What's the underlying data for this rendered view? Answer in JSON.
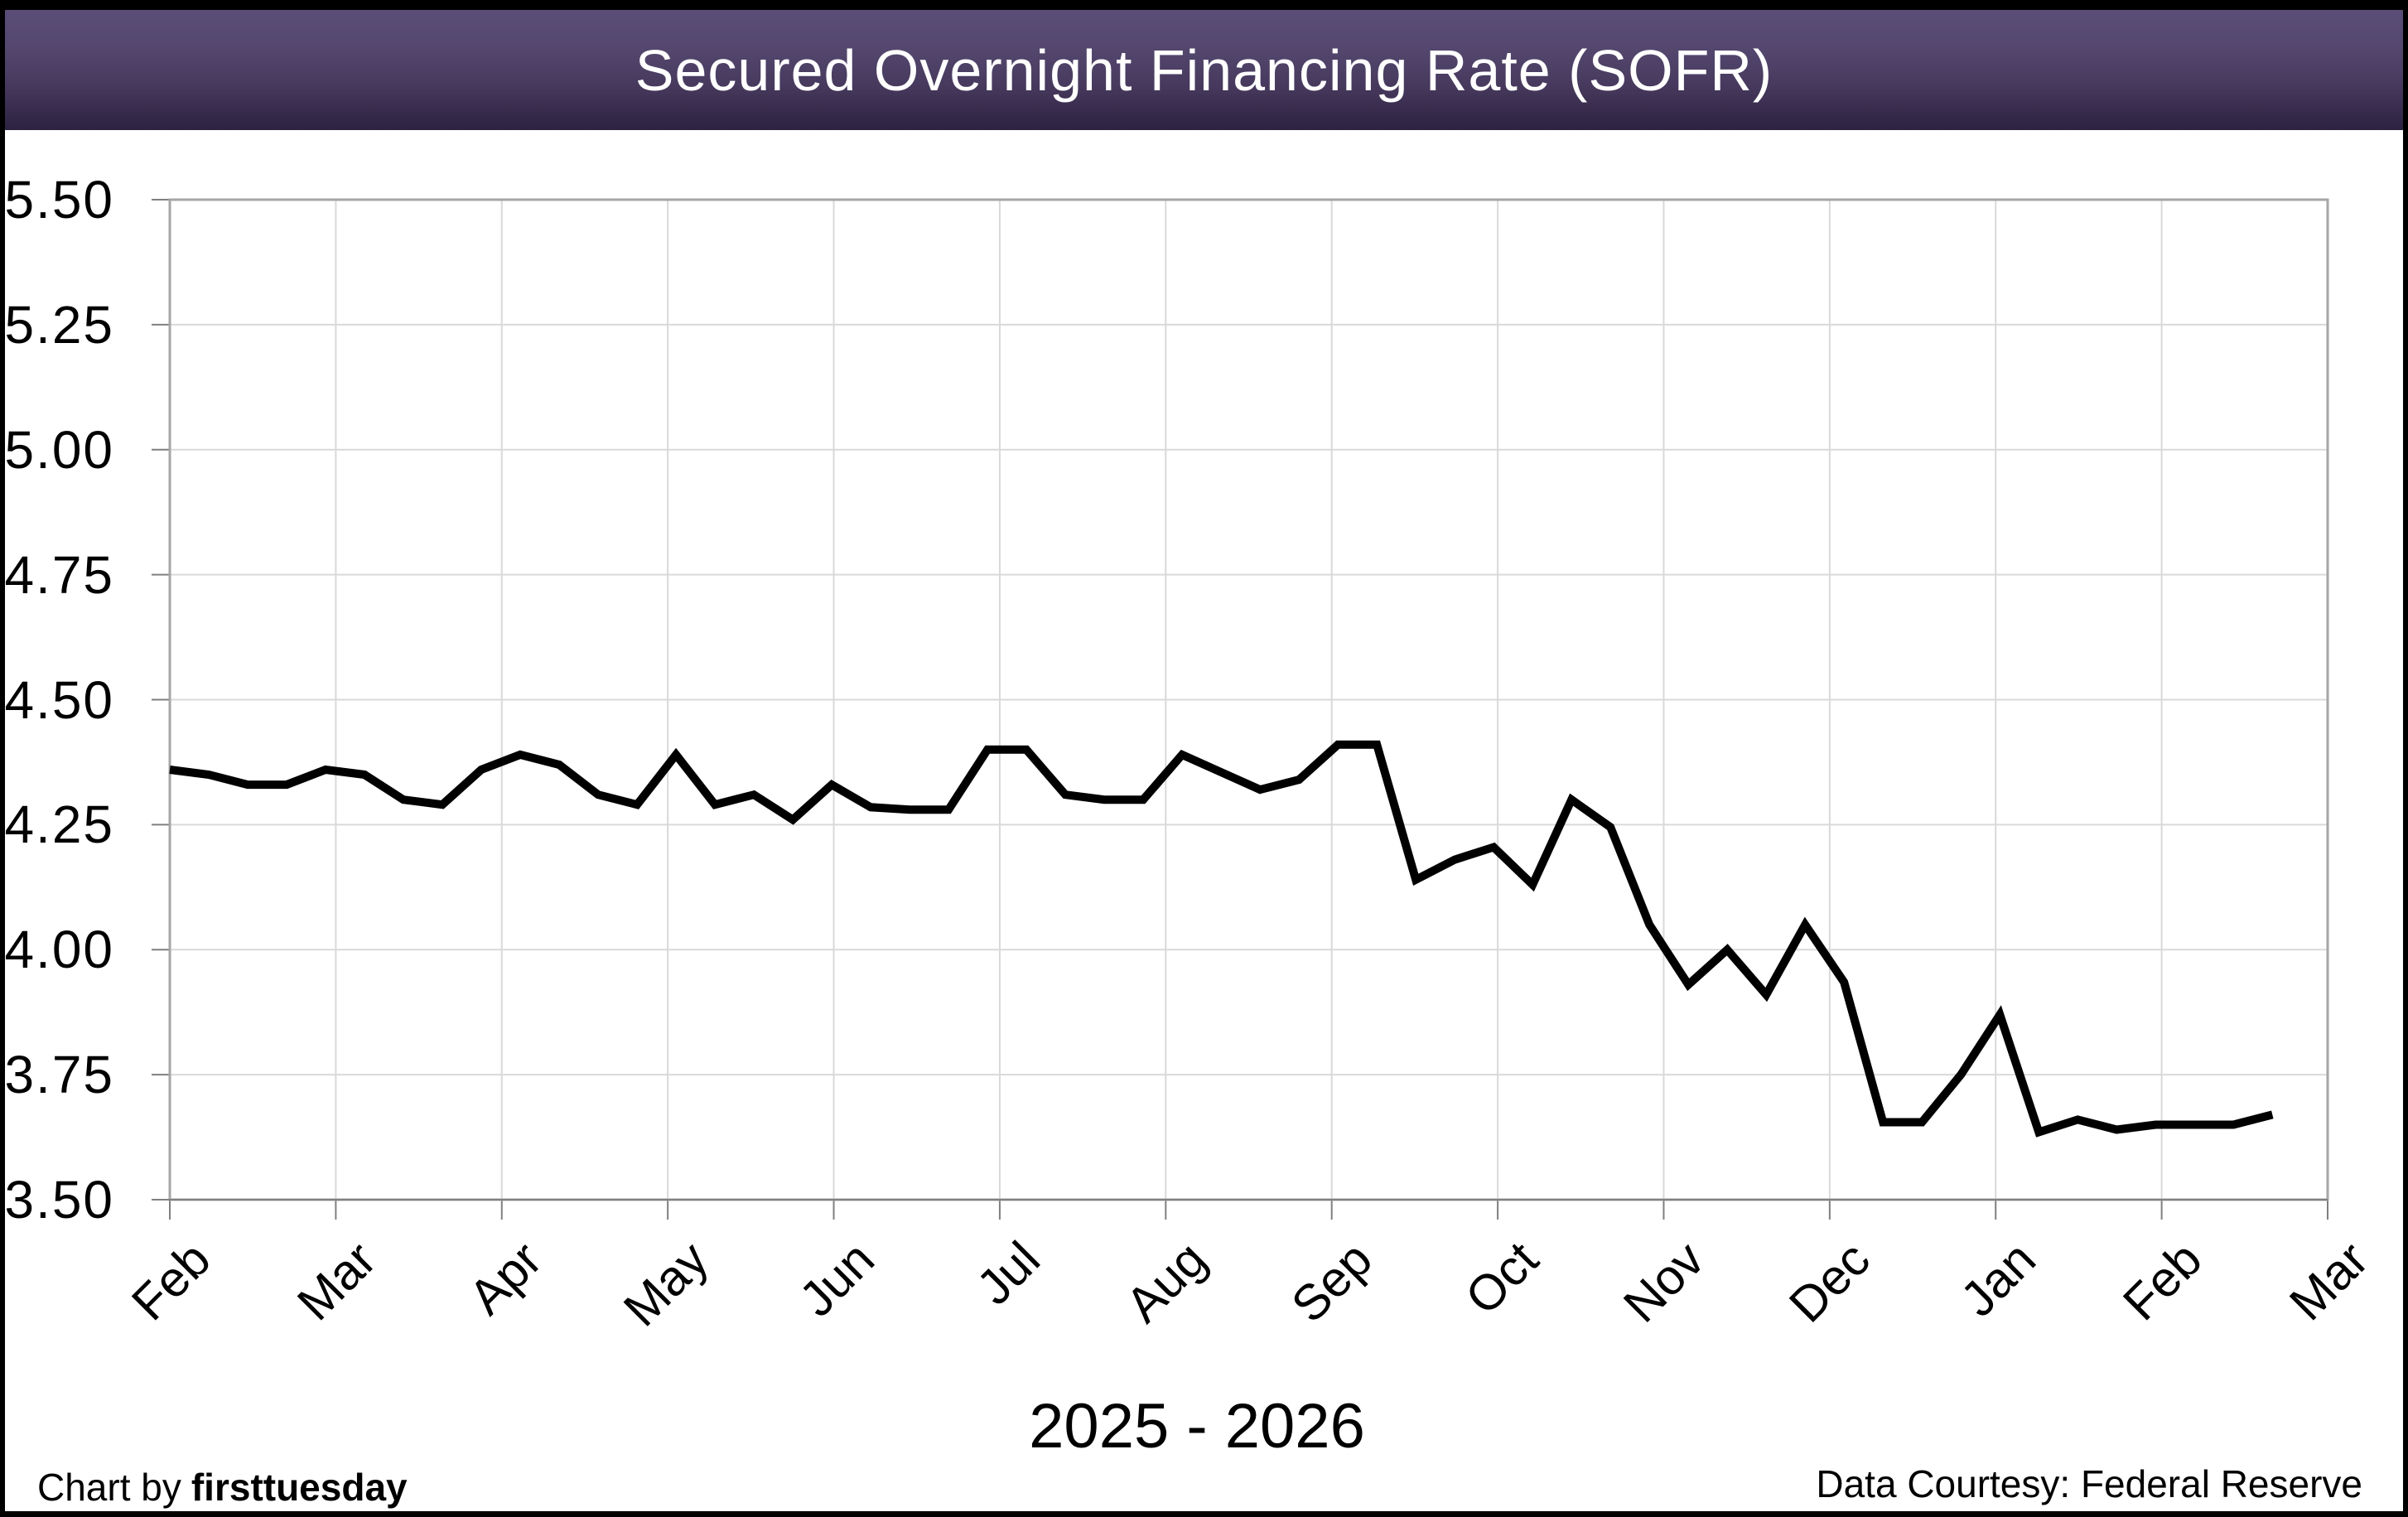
{
  "header": {
    "title": "Secured Overnight Financing Rate (SOFR)"
  },
  "footer": {
    "credit_prefix": "Chart by",
    "credit_brand": "firsttuesday",
    "data_courtesy": "Data Courtesy: Federal Reserve"
  },
  "chart_data": {
    "type": "line",
    "title": "Secured Overnight Financing Rate (SOFR)",
    "xlabel": "2025 - 2026",
    "ylabel": "",
    "x_tick_labels": [
      "Feb",
      "Mar",
      "Apr",
      "May",
      "Jun",
      "Jul",
      "Aug",
      "Sep",
      "Oct",
      "Nov",
      "Dec",
      "Jan",
      "Feb",
      "Mar"
    ],
    "x_period": "2025 - 2026",
    "ylim": [
      3.5,
      5.5
    ],
    "ytick_step": 0.25,
    "ytick_labels": [
      "5.50",
      "5.25",
      "5.00",
      "4.75",
      "4.50",
      "4.25",
      "4.00",
      "3.75",
      "3.50"
    ],
    "grid": true,
    "legend_position": "none",
    "series": [
      {
        "name": "SOFR",
        "frequency": "weekly",
        "points_per_month": 4.263,
        "values": [
          4.36,
          4.35,
          4.33,
          4.33,
          4.36,
          4.35,
          4.3,
          4.29,
          4.36,
          4.39,
          4.37,
          4.31,
          4.29,
          4.39,
          4.29,
          4.31,
          4.26,
          4.33,
          4.285,
          4.28,
          4.28,
          4.4,
          4.4,
          4.31,
          4.3,
          4.3,
          4.39,
          4.355,
          4.32,
          4.34,
          4.41,
          4.41,
          4.14,
          4.18,
          4.205,
          4.13,
          4.3,
          4.245,
          4.05,
          3.93,
          4.0,
          3.91,
          4.05,
          3.935,
          3.655,
          3.655,
          3.75,
          3.87,
          3.635,
          3.66,
          3.64,
          3.65,
          3.65,
          3.65,
          3.67
        ]
      }
    ],
    "colors": {
      "line": "#000000",
      "gridline": "#d9d9d9",
      "plot_border": "#a6a6a6",
      "axis_line": "#808080",
      "tick": "#7f7f7f",
      "header_text": "#ffffff",
      "header_gradient_top": "#5a4d77",
      "header_gradient_bottom": "#2d2240",
      "page_border": "#000000"
    }
  }
}
